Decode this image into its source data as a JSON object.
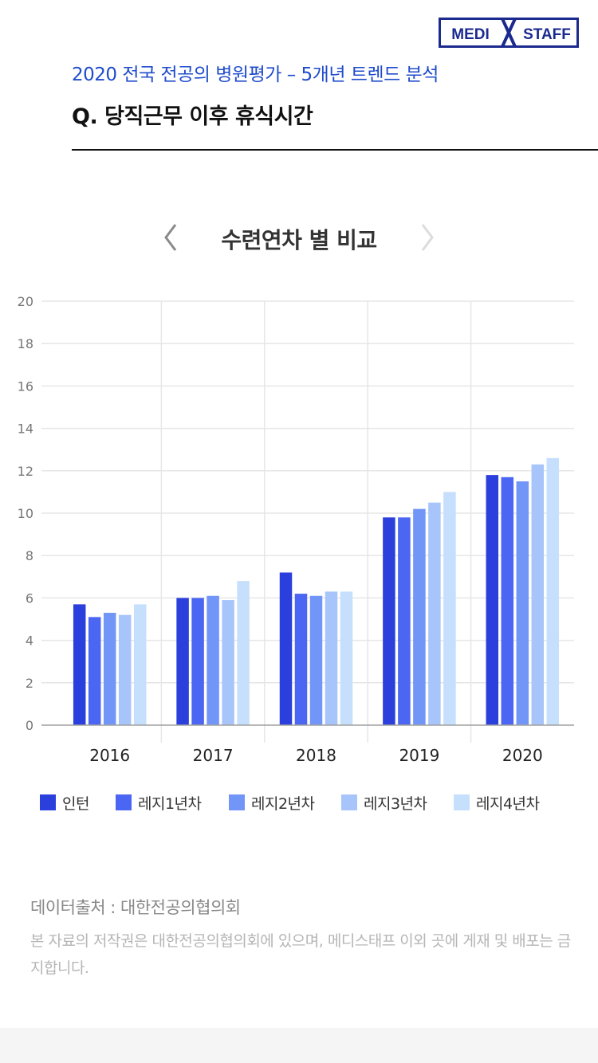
{
  "logo": {
    "left_text": "MEDI",
    "right_text": "STAFF"
  },
  "header": {
    "subtitle": "2020 전국 전공의 병원평가 – 5개년 트렌드 분석",
    "question": "Q. 당직근무 이후 휴식시간"
  },
  "nav": {
    "title": "수련연차 별 비교",
    "prev_icon": "chevron-left-icon",
    "next_icon": "chevron-right-icon"
  },
  "chart_data": {
    "type": "bar",
    "categories": [
      "2016",
      "2017",
      "2018",
      "2019",
      "2020"
    ],
    "series": [
      {
        "name": "인턴",
        "color": "#2b3fdc",
        "values": [
          5.7,
          6.0,
          7.2,
          9.8,
          11.8
        ]
      },
      {
        "name": "레지1년차",
        "color": "#4a66f2",
        "values": [
          5.1,
          6.0,
          6.2,
          9.8,
          11.7
        ]
      },
      {
        "name": "레지2년차",
        "color": "#7296f7",
        "values": [
          5.3,
          6.1,
          6.1,
          10.2,
          11.5
        ]
      },
      {
        "name": "레지3년차",
        "color": "#a8c5fb",
        "values": [
          5.2,
          5.9,
          6.3,
          10.5,
          12.3
        ]
      },
      {
        "name": "레지4년차",
        "color": "#c6dffc",
        "values": [
          5.7,
          6.8,
          6.3,
          11.0,
          12.6
        ]
      }
    ],
    "yticks": [
      "0",
      "2",
      "4",
      "6",
      "8",
      "10",
      "12",
      "14",
      "16",
      "18",
      "20"
    ],
    "ylim": [
      0,
      20
    ],
    "grid": true,
    "legend": "bottom"
  },
  "source": {
    "title": "데이터출처 : 대한전공의협의회",
    "note": "본 자료의 저작권은 대한전공의협의회에 있으며, 메디스태프 이외 곳에 게재 및 배포는 금지합니다."
  }
}
